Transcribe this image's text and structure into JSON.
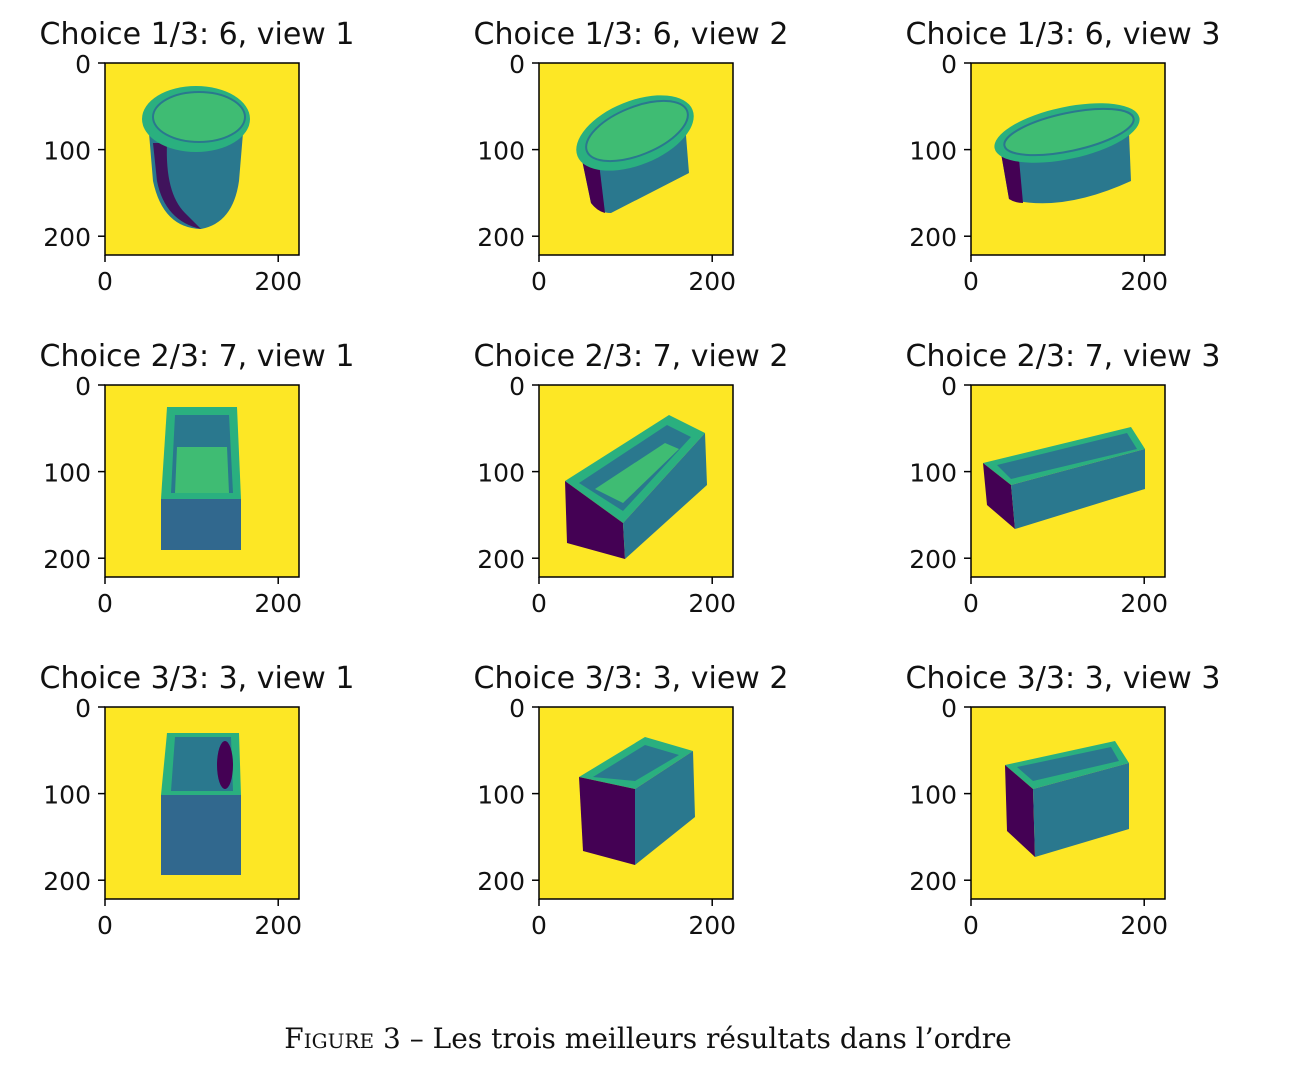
{
  "figure": {
    "panels": [
      {
        "title": "Choice 1/3: 6, view 1",
        "object": "cylinder",
        "view": 1
      },
      {
        "title": "Choice 1/3: 6, view 2",
        "object": "cylinder",
        "view": 2
      },
      {
        "title": "Choice 1/3: 6, view 3",
        "object": "cylinder",
        "view": 3
      },
      {
        "title": "Choice 2/3: 7, view 1",
        "object": "tub",
        "view": 1
      },
      {
        "title": "Choice 2/3: 7, view 2",
        "object": "tub",
        "view": 2
      },
      {
        "title": "Choice 2/3: 7, view 3",
        "object": "tub",
        "view": 3
      },
      {
        "title": "Choice 3/3: 3, view 1",
        "object": "box",
        "view": 1
      },
      {
        "title": "Choice 3/3: 3, view 2",
        "object": "box",
        "view": 2
      },
      {
        "title": "Choice 3/3: 3, view 3",
        "object": "box",
        "view": 3
      }
    ],
    "y_ticks": [
      "0",
      "100",
      "200"
    ],
    "x_ticks": [
      "0",
      "200"
    ],
    "colors": {
      "background": "#fde725",
      "top_face": "#2ab07f",
      "top_face_light": "#3fbc73",
      "side_face": "#2a788e",
      "dark_face": "#440154",
      "mid_face": "#31688e",
      "shade_face": "#3b528b"
    }
  },
  "caption": {
    "figure_word": "Figure 3",
    "separator": "–",
    "text": "Les trois meilleurs résultats dans l’ordre"
  }
}
